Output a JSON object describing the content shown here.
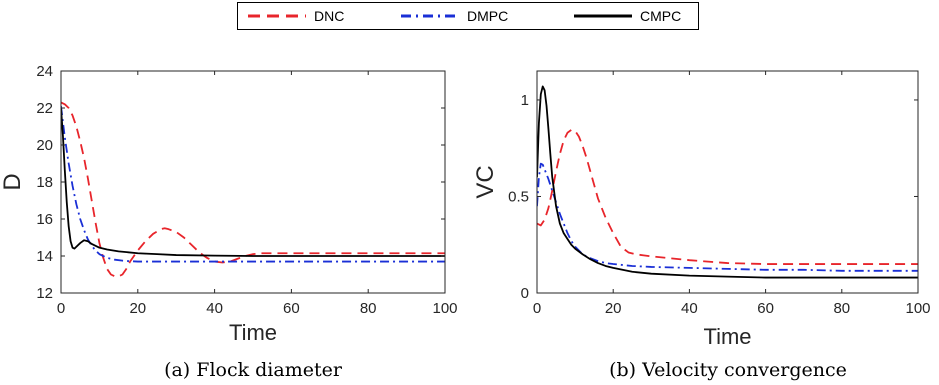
{
  "legend": {
    "entries": [
      {
        "name": "DNC",
        "color": "#e8252b",
        "dash": "dashed"
      },
      {
        "name": "DMPC",
        "color": "#1a2fd6",
        "dash": "dashdot"
      },
      {
        "name": "CMPC",
        "color": "#000000",
        "dash": "solid"
      }
    ]
  },
  "chart_data": [
    {
      "type": "line",
      "caption": "(a) Flock diameter",
      "xlabel": "Time",
      "ylabel": "D",
      "xlim": [
        0,
        100
      ],
      "ylim": [
        12,
        24
      ],
      "xticks": [
        0,
        20,
        40,
        60,
        80,
        100
      ],
      "yticks": [
        12,
        14,
        16,
        18,
        20,
        22,
        24
      ],
      "grid": false,
      "series": [
        {
          "name": "DNC",
          "color": "#e8252b",
          "dash": "dashed",
          "x": [
            0,
            1,
            2,
            3,
            4,
            5,
            6,
            7,
            8,
            9,
            10,
            11,
            12,
            13,
            14,
            15,
            16,
            17,
            18,
            20,
            22,
            24,
            26,
            27,
            28,
            30,
            32,
            34,
            36,
            38,
            40,
            42,
            44,
            46,
            48,
            50,
            52,
            54,
            56,
            60,
            70,
            80,
            90,
            100
          ],
          "y": [
            22.3,
            22.2,
            22.0,
            21.6,
            21.0,
            20.2,
            19.3,
            18.2,
            17.0,
            15.8,
            14.7,
            13.9,
            13.3,
            13.0,
            12.9,
            12.9,
            13.0,
            13.3,
            13.7,
            14.3,
            14.8,
            15.2,
            15.45,
            15.5,
            15.45,
            15.3,
            15.0,
            14.6,
            14.2,
            13.9,
            13.7,
            13.65,
            13.7,
            13.85,
            14.0,
            14.1,
            14.15,
            14.15,
            14.15,
            14.15,
            14.15,
            14.15,
            14.15,
            14.15
          ]
        },
        {
          "name": "DMPC",
          "color": "#1a2fd6",
          "dash": "dashdot",
          "x": [
            0,
            1,
            2,
            3,
            4,
            5,
            6,
            7,
            8,
            9,
            10,
            12,
            14,
            16,
            18,
            20,
            25,
            30,
            40,
            50,
            60,
            70,
            80,
            90,
            100
          ],
          "y": [
            22.1,
            20.4,
            19.0,
            17.8,
            16.8,
            16.0,
            15.4,
            14.9,
            14.55,
            14.3,
            14.1,
            13.9,
            13.8,
            13.75,
            13.72,
            13.7,
            13.7,
            13.7,
            13.7,
            13.7,
            13.7,
            13.7,
            13.7,
            13.7,
            13.7
          ]
        },
        {
          "name": "CMPC",
          "color": "#000000",
          "dash": "solid",
          "x": [
            0,
            0.5,
            1,
            1.5,
            2,
            2.5,
            3,
            3.5,
            4,
            5,
            6,
            7,
            8,
            9,
            10,
            12,
            15,
            20,
            25,
            30,
            40,
            50,
            60,
            70,
            80,
            90,
            100
          ],
          "y": [
            22.0,
            20.5,
            18.6,
            16.9,
            15.6,
            14.8,
            14.45,
            14.4,
            14.5,
            14.7,
            14.85,
            14.8,
            14.65,
            14.55,
            14.45,
            14.35,
            14.25,
            14.15,
            14.1,
            14.05,
            14.02,
            14.0,
            14.0,
            14.0,
            14.0,
            14.0,
            14.0
          ]
        }
      ]
    },
    {
      "type": "line",
      "caption": "(b) Velocity convergence",
      "xlabel": "Time",
      "ylabel": "VC",
      "xlim": [
        0,
        100
      ],
      "ylim": [
        0,
        1.15
      ],
      "xticks": [
        0,
        20,
        40,
        60,
        80,
        100
      ],
      "yticks": [
        0,
        0.5,
        1
      ],
      "grid": false,
      "series": [
        {
          "name": "DNC",
          "color": "#e8252b",
          "dash": "dashed",
          "x": [
            0,
            1,
            2,
            3,
            4,
            5,
            6,
            7,
            8,
            9,
            10,
            11,
            12,
            13,
            14,
            15,
            16,
            18,
            20,
            22,
            24,
            26,
            28,
            30,
            35,
            40,
            50,
            60,
            70,
            80,
            90,
            100
          ],
          "y": [
            0.36,
            0.35,
            0.38,
            0.44,
            0.53,
            0.63,
            0.72,
            0.79,
            0.83,
            0.845,
            0.84,
            0.81,
            0.76,
            0.7,
            0.63,
            0.56,
            0.49,
            0.39,
            0.31,
            0.24,
            0.21,
            0.2,
            0.195,
            0.19,
            0.18,
            0.17,
            0.155,
            0.15,
            0.15,
            0.15,
            0.15,
            0.15
          ]
        },
        {
          "name": "DMPC",
          "color": "#1a2fd6",
          "dash": "dashdot",
          "x": [
            0,
            0.5,
            1,
            1.5,
            2,
            3,
            4,
            5,
            6,
            7,
            8,
            9,
            10,
            12,
            14,
            16,
            18,
            20,
            25,
            30,
            40,
            50,
            60,
            70,
            80,
            90,
            100
          ],
          "y": [
            0.45,
            0.6,
            0.67,
            0.665,
            0.64,
            0.59,
            0.53,
            0.47,
            0.41,
            0.36,
            0.31,
            0.27,
            0.24,
            0.2,
            0.18,
            0.165,
            0.155,
            0.15,
            0.14,
            0.135,
            0.13,
            0.125,
            0.12,
            0.12,
            0.115,
            0.115,
            0.115
          ]
        },
        {
          "name": "CMPC",
          "color": "#000000",
          "dash": "solid",
          "x": [
            0,
            0.5,
            1,
            1.5,
            2,
            2.5,
            3,
            3.5,
            4,
            5,
            6,
            7,
            8,
            9,
            10,
            12,
            14,
            16,
            18,
            20,
            25,
            30,
            40,
            50,
            60,
            70,
            80,
            90,
            100
          ],
          "y": [
            0.6,
            0.88,
            1.03,
            1.07,
            1.05,
            0.97,
            0.85,
            0.72,
            0.6,
            0.45,
            0.36,
            0.31,
            0.28,
            0.25,
            0.23,
            0.2,
            0.175,
            0.155,
            0.14,
            0.13,
            0.11,
            0.1,
            0.09,
            0.085,
            0.08,
            0.08,
            0.08,
            0.08,
            0.08
          ]
        }
      ]
    }
  ]
}
